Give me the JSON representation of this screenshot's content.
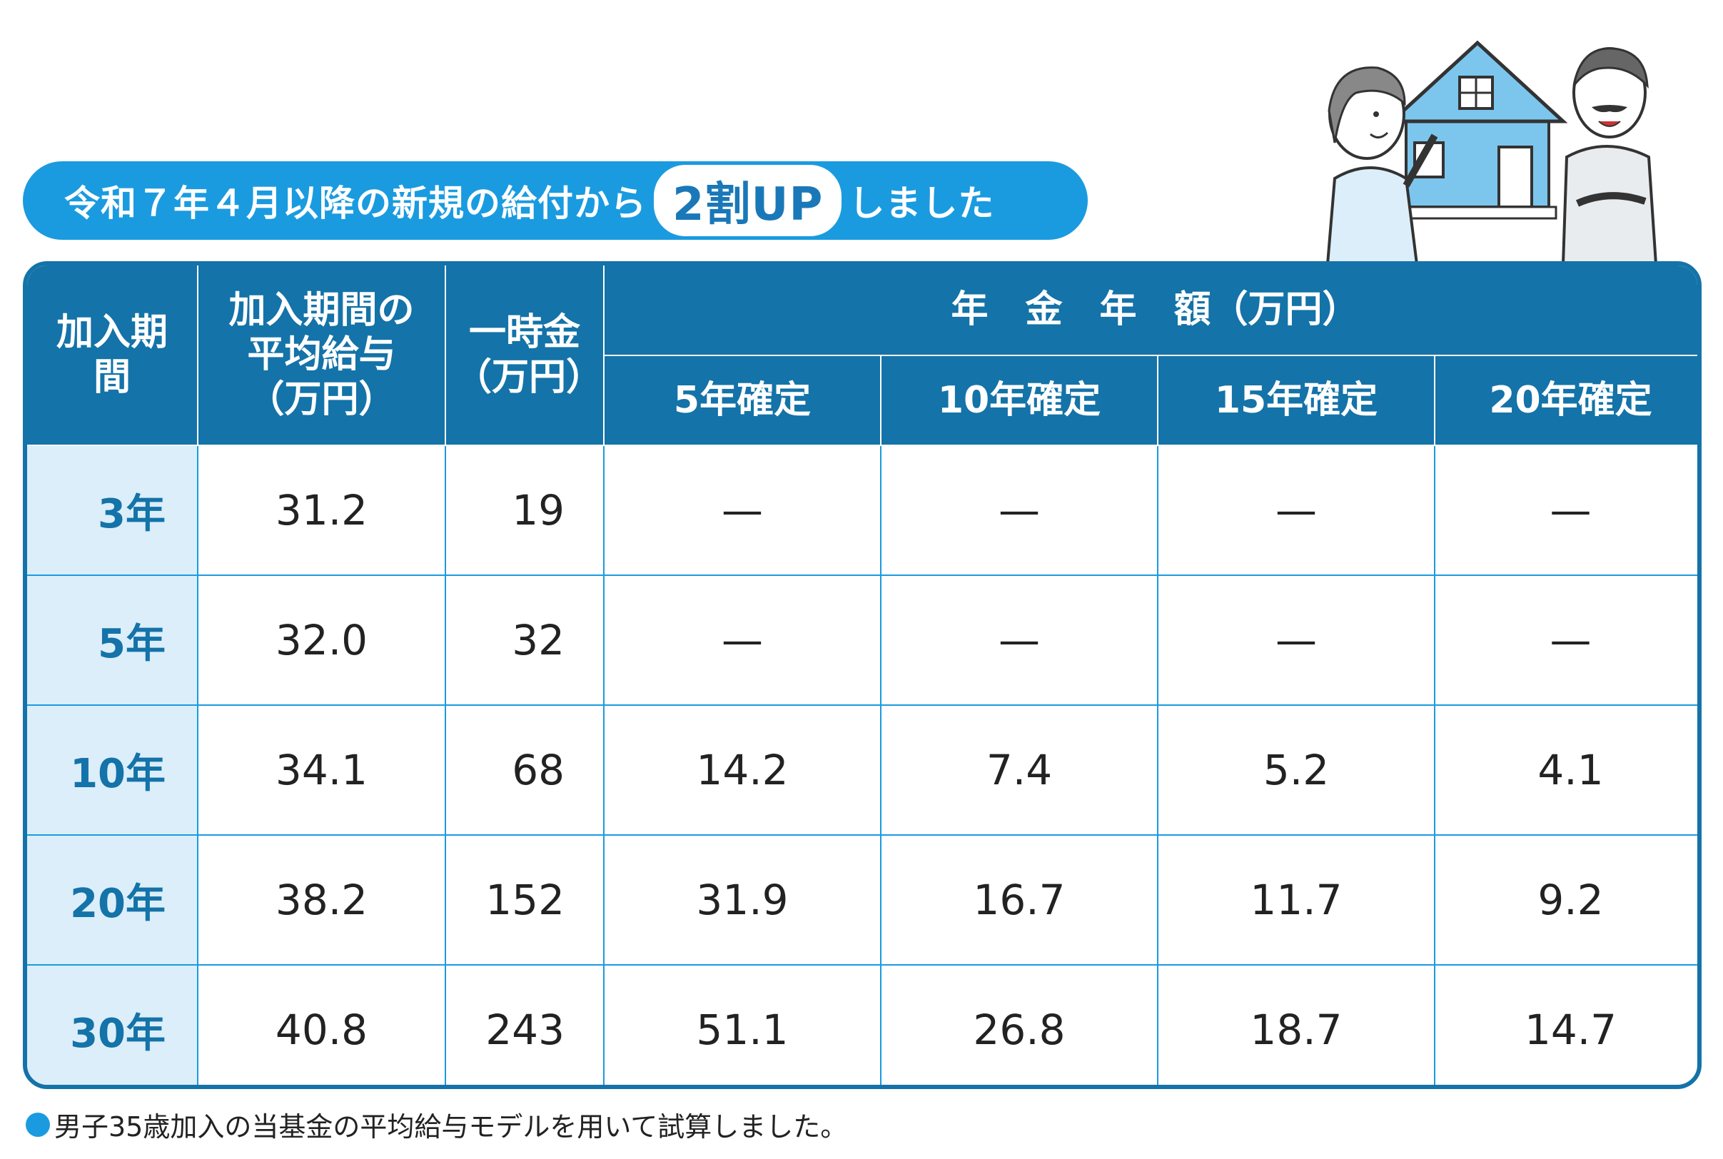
{
  "banner": {
    "pre": "令和７年４月以降の新規の給付から",
    "highlight": "2割UP",
    "post": "しました"
  },
  "table": {
    "headers": {
      "period": "加入期間",
      "avg_salary": "加入期間の平均給与（万円）",
      "lump_sum": "一時金（万円）",
      "annuity_group": "年　金　年　額（万円）",
      "annuity_cols": [
        "5年確定",
        "10年確定",
        "15年確定",
        "20年確定"
      ]
    },
    "rows": [
      {
        "period": "3年",
        "avg_salary": "31.2",
        "lump_sum": "19",
        "y5": "—",
        "y10": "—",
        "y15": "—",
        "y20": "—"
      },
      {
        "period": "5年",
        "avg_salary": "32.0",
        "lump_sum": "32",
        "y5": "—",
        "y10": "—",
        "y15": "—",
        "y20": "—"
      },
      {
        "period": "10年",
        "avg_salary": "34.1",
        "lump_sum": "68",
        "y5": "14.2",
        "y10": "7.4",
        "y15": "5.2",
        "y20": "4.1"
      },
      {
        "period": "20年",
        "avg_salary": "38.2",
        "lump_sum": "152",
        "y5": "31.9",
        "y10": "16.7",
        "y15": "11.7",
        "y20": "9.2"
      },
      {
        "period": "30年",
        "avg_salary": "40.8",
        "lump_sum": "243",
        "y5": "51.1",
        "y10": "26.8",
        "y15": "18.7",
        "y20": "14.7"
      }
    ]
  },
  "note": "男子35歳加入の当基金の平均給与モデルを用いて試算しました。",
  "chart_data": {
    "type": "table",
    "columns": [
      "加入期間",
      "加入期間の平均給与（万円）",
      "一時金（万円）",
      "5年確定",
      "10年確定",
      "15年確定",
      "20年確定"
    ],
    "group_header": "年　金　年　額（万円）",
    "rows": [
      [
        "3年",
        31.2,
        19,
        null,
        null,
        null,
        null
      ],
      [
        "5年",
        32.0,
        32,
        null,
        null,
        null,
        null
      ],
      [
        "10年",
        34.1,
        68,
        14.2,
        7.4,
        5.2,
        4.1
      ],
      [
        "20年",
        38.2,
        152,
        31.9,
        16.7,
        11.7,
        9.2
      ],
      [
        "30年",
        40.8,
        243,
        51.1,
        26.8,
        18.7,
        14.7
      ]
    ]
  },
  "colors": {
    "primary": "#1473a8",
    "accent": "#1a9be0",
    "light": "#dceef9"
  },
  "illustration": "couple-with-house-icon"
}
